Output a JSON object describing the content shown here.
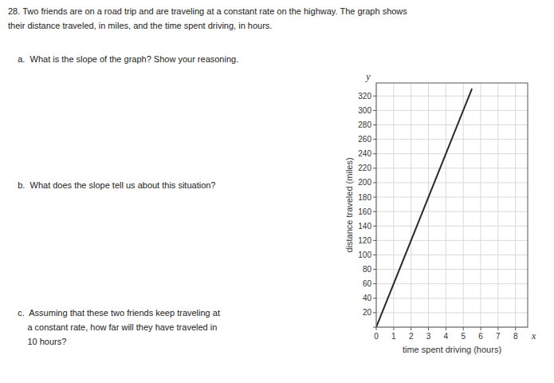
{
  "chart_data": {
    "type": "line",
    "x": [
      0,
      5.5
    ],
    "values": [
      0,
      330
    ],
    "color": "#2a2a2a",
    "x_label": "time spent driving (hours)",
    "y_label": "distance traveled (miles)",
    "xlim": [
      0,
      8.7
    ],
    "ylim": [
      0,
      338
    ],
    "xticks": [
      0,
      1,
      2,
      3,
      4,
      5,
      6,
      7,
      8
    ],
    "yticks": [
      {
        "value": 0,
        "label": null
      },
      20,
      40,
      60,
      80,
      100,
      120,
      140,
      160,
      180,
      200,
      220,
      240,
      260,
      280,
      300,
      320
    ],
    "grid": true,
    "annotations": [
      {
        "text": "28. Two friends are on a road trip and are traveling at a constant rate on the highway. The graph shows"
      },
      {
        "text": "their distance traveled, in miles, and the time spent driving, in hours."
      },
      {
        "text": "    a.  What is the slope of the graph? Show your reasoning."
      },
      {
        "text": "    b.  What does the slope tell us about this situation?"
      },
      {
        "text": "    c.  Assuming that these two friends keep traveling at"
      },
      {
        "text": "        a constant rate, how far will they have traveled in"
      },
      {
        "text": "        10 hours?"
      },
      {
        "text": "x",
        "axis": "x"
      },
      {
        "text": "y",
        "axis": "y"
      }
    ]
  }
}
